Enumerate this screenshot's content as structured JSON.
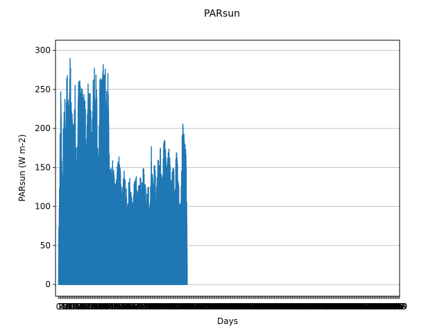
{
  "figure": {
    "title": "PARsun"
  },
  "chart_data": {
    "type": "line",
    "title": "PARsun",
    "xlabel": "Days",
    "ylabel": "PARsun (W m-2)",
    "ylim": [
      -15,
      313
    ],
    "xlim": [
      -30,
      3290
    ],
    "yticks": [
      0,
      50,
      100,
      150,
      200,
      250,
      300
    ],
    "grid": {
      "y": true,
      "x": false
    },
    "x_tick_count": 300,
    "data_days": 1100,
    "line_color": "#1f77b4",
    "daily_peak_envelope": [
      [
        0,
        58
      ],
      [
        8,
        126
      ],
      [
        20,
        263
      ],
      [
        35,
        115
      ],
      [
        50,
        255
      ],
      [
        65,
        238
      ],
      [
        78,
        277
      ],
      [
        95,
        254
      ],
      [
        110,
        299
      ],
      [
        125,
        242
      ],
      [
        140,
        201
      ],
      [
        160,
        266
      ],
      [
        175,
        142
      ],
      [
        190,
        275
      ],
      [
        205,
        270
      ],
      [
        220,
        253
      ],
      [
        235,
        272
      ],
      [
        250,
        248
      ],
      [
        270,
        200
      ],
      [
        285,
        281
      ],
      [
        300,
        265
      ],
      [
        320,
        190
      ],
      [
        335,
        275
      ],
      [
        350,
        283
      ],
      [
        365,
        270
      ],
      [
        380,
        160
      ],
      [
        400,
        286
      ],
      [
        415,
        262
      ],
      [
        430,
        285
      ],
      [
        445,
        288
      ],
      [
        460,
        266
      ],
      [
        475,
        282
      ],
      [
        490,
        150
      ],
      [
        505,
        150
      ],
      [
        520,
        162
      ],
      [
        535,
        145
      ],
      [
        550,
        125
      ],
      [
        565,
        156
      ],
      [
        580,
        167
      ],
      [
        600,
        145
      ],
      [
        615,
        120
      ],
      [
        630,
        148
      ],
      [
        650,
        133
      ],
      [
        665,
        110
      ],
      [
        680,
        142
      ],
      [
        700,
        128
      ],
      [
        715,
        105
      ],
      [
        730,
        138
      ],
      [
        750,
        142
      ],
      [
        765,
        118
      ],
      [
        780,
        147
      ],
      [
        800,
        131
      ],
      [
        815,
        150
      ],
      [
        830,
        146
      ],
      [
        850,
        114
      ],
      [
        865,
        132
      ],
      [
        880,
        100
      ],
      [
        895,
        178
      ],
      [
        910,
        130
      ],
      [
        925,
        176
      ],
      [
        940,
        110
      ],
      [
        955,
        170
      ],
      [
        970,
        155
      ],
      [
        985,
        190
      ],
      [
        1000,
        134
      ],
      [
        1015,
        188
      ],
      [
        1030,
        183
      ],
      [
        1045,
        146
      ],
      [
        1060,
        187
      ],
      [
        1075,
        157
      ],
      [
        1090,
        130
      ],
      [
        1105,
        178
      ],
      [
        1120,
        104
      ],
      [
        1135,
        186
      ],
      [
        1150,
        157
      ],
      [
        1165,
        106
      ],
      [
        1180,
        113
      ],
      [
        1195,
        213
      ],
      [
        1210,
        200
      ],
      [
        1220,
        182
      ],
      [
        1230,
        172
      ],
      [
        1240,
        40
      ]
    ]
  }
}
